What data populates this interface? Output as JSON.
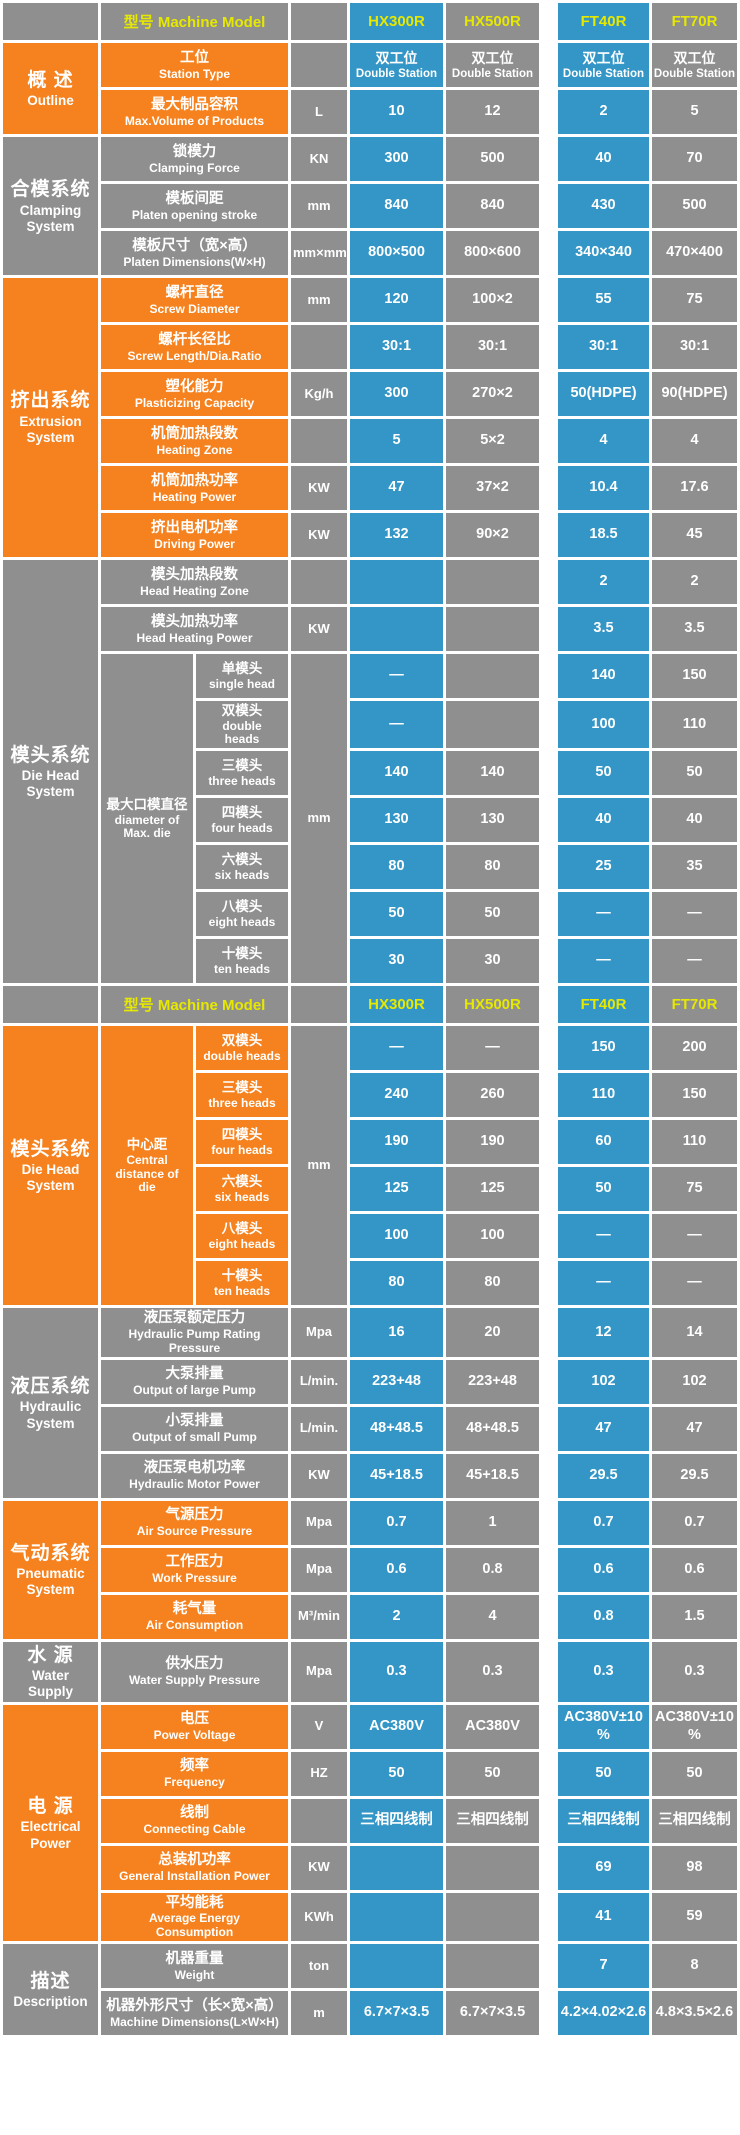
{
  "palette": {
    "orange": "#F5821E",
    "gray": "#8F8F8F",
    "blue": "#3396C6",
    "yellow_text": "#E6E800",
    "value_text": "#FFFFFF",
    "background": "#FFFFFF"
  },
  "header": {
    "model_label": "型号 Machine Model",
    "models": [
      "HX300R",
      "HX500R",
      "FT40R",
      "FT70R"
    ]
  },
  "blocks": [
    {
      "type": "header"
    },
    {
      "type": "section",
      "cn": "概 述",
      "en": "Outline",
      "theme": "orange",
      "rows": [
        {
          "cn": "工位",
          "en": "Station Type",
          "unit": "",
          "values": [
            {
              "cn": "双工位",
              "en": "Double Station"
            },
            {
              "cn": "双工位",
              "en": "Double Station"
            },
            {
              "cn": "双工位",
              "en": "Double Station"
            },
            {
              "cn": "双工位",
              "en": "Double Station"
            }
          ]
        },
        {
          "cn": "最大制品容积",
          "en": "Max.Volume of Products",
          "unit": "L",
          "values": [
            "10",
            "12",
            "2",
            "5"
          ]
        }
      ]
    },
    {
      "type": "section",
      "cn": "合模系统",
      "en": "Clamping\nSystem",
      "theme": "gray",
      "rows": [
        {
          "cn": "锁模力",
          "en": "Clamping Force",
          "unit": "KN",
          "values": [
            "300",
            "500",
            "40",
            "70"
          ]
        },
        {
          "cn": "模板间距",
          "en": "Platen opening stroke",
          "unit": "mm",
          "values": [
            "840",
            "840",
            "430",
            "500"
          ]
        },
        {
          "cn": "模板尺寸（宽×高）",
          "en": "Platen Dimensions(W×H)",
          "unit": "mm×mm",
          "values": [
            "800×500",
            "800×600",
            "340×340",
            "470×400"
          ]
        }
      ]
    },
    {
      "type": "section",
      "cn": "挤出系统",
      "en": "Extrusion\nSystem",
      "theme": "orange",
      "rows": [
        {
          "cn": "螺杆直径",
          "en": "Screw Diameter",
          "unit": "mm",
          "values": [
            "120",
            "100×2",
            "55",
            "75"
          ]
        },
        {
          "cn": "螺杆长径比",
          "en": "Screw Length/Dia.Ratio",
          "unit": "",
          "values": [
            "30:1",
            "30:1",
            "30:1",
            "30:1"
          ]
        },
        {
          "cn": "塑化能力",
          "en": "Plasticizing Capacity",
          "unit": "Kg/h",
          "values": [
            "300",
            "270×2",
            "50(HDPE)",
            "90(HDPE)"
          ]
        },
        {
          "cn": "机筒加热段数",
          "en": "Heating Zone",
          "unit": "",
          "values": [
            "5",
            "5×2",
            "4",
            "4"
          ]
        },
        {
          "cn": "机筒加热功率",
          "en": "Heating Power",
          "unit": "KW",
          "values": [
            "47",
            "37×2",
            "10.4",
            "17.6"
          ]
        },
        {
          "cn": "挤出电机功率",
          "en": "Driving Power",
          "unit": "KW",
          "values": [
            "132",
            "90×2",
            "18.5",
            "45"
          ]
        }
      ]
    },
    {
      "type": "section",
      "cn": "模头系统",
      "en": "Die Head\nSystem",
      "theme": "gray",
      "rows": [
        {
          "cn": "模头加热段数",
          "en": "Head Heating Zone",
          "unit": "",
          "values": [
            "",
            "",
            "2",
            "2"
          ]
        },
        {
          "cn": "模头加热功率",
          "en": "Head Heating Power",
          "unit": "KW",
          "values": [
            "",
            "",
            "3.5",
            "3.5"
          ]
        },
        {
          "group": {
            "cn": "最大口模直径",
            "en": "diameter of\nMax. die"
          },
          "unit": "mm",
          "subrows": [
            {
              "cn": "单模头",
              "en": "single head",
              "values": [
                "—",
                "",
                "140",
                "150"
              ]
            },
            {
              "cn": "双模头",
              "en": "double\nheads",
              "values": [
                "—",
                "",
                "100",
                "110"
              ]
            },
            {
              "cn": "三模头",
              "en": "three heads",
              "values": [
                "140",
                "140",
                "50",
                "50"
              ]
            },
            {
              "cn": "四模头",
              "en": "four heads",
              "values": [
                "130",
                "130",
                "40",
                "40"
              ]
            },
            {
              "cn": "六模头",
              "en": "six heads",
              "values": [
                "80",
                "80",
                "25",
                "35"
              ]
            },
            {
              "cn": "八模头",
              "en": "eight heads",
              "values": [
                "50",
                "50",
                "—",
                "—"
              ]
            },
            {
              "cn": "十模头",
              "en": "ten heads",
              "values": [
                "30",
                "30",
                "—",
                "—"
              ]
            }
          ]
        }
      ]
    },
    {
      "type": "header"
    },
    {
      "type": "section",
      "cn": "模头系统",
      "en": "Die Head\nSystem",
      "theme": "orange",
      "rows": [
        {
          "group": {
            "cn": "中心距",
            "en": "Central\ndistance of\ndie"
          },
          "unit": "mm",
          "subrows": [
            {
              "cn": "双模头",
              "en": "double heads",
              "values": [
                "—",
                "—",
                "150",
                "200"
              ]
            },
            {
              "cn": "三模头",
              "en": "three heads",
              "values": [
                "240",
                "260",
                "110",
                "150"
              ]
            },
            {
              "cn": "四模头",
              "en": "four heads",
              "values": [
                "190",
                "190",
                "60",
                "110"
              ]
            },
            {
              "cn": "六模头",
              "en": "six heads",
              "values": [
                "125",
                "125",
                "50",
                "75"
              ]
            },
            {
              "cn": "八模头",
              "en": "eight heads",
              "values": [
                "100",
                "100",
                "—",
                "—"
              ]
            },
            {
              "cn": "十模头",
              "en": "ten heads",
              "values": [
                "80",
                "80",
                "—",
                "—"
              ]
            }
          ]
        }
      ]
    },
    {
      "type": "section",
      "cn": "液压系统",
      "en": "Hydraulic\nSystem",
      "theme": "gray",
      "rows": [
        {
          "cn": "液压泵额定压力",
          "en": "Hydraulic Pump Rating Pressure",
          "unit": "Mpa",
          "values": [
            "16",
            "20",
            "12",
            "14"
          ]
        },
        {
          "cn": "大泵排量",
          "en": "Output of large Pump",
          "unit": "L/min.",
          "values": [
            "223+48",
            "223+48",
            "102",
            "102"
          ]
        },
        {
          "cn": "小泵排量",
          "en": "Output of small Pump",
          "unit": "L/min.",
          "values": [
            "48+48.5",
            "48+48.5",
            "47",
            "47"
          ]
        },
        {
          "cn": "液压泵电机功率",
          "en": "Hydraulic Motor Power",
          "unit": "KW",
          "values": [
            "45+18.5",
            "45+18.5",
            "29.5",
            "29.5"
          ]
        }
      ]
    },
    {
      "type": "section",
      "cn": "气动系统",
      "en": "Pneumatic\nSystem",
      "theme": "orange",
      "rows": [
        {
          "cn": "气源压力",
          "en": "Air Source Pressure",
          "unit": "Mpa",
          "values": [
            "0.7",
            "1",
            "0.7",
            "0.7"
          ]
        },
        {
          "cn": "工作压力",
          "en": "Work Pressure",
          "unit": "Mpa",
          "values": [
            "0.6",
            "0.8",
            "0.6",
            "0.6"
          ]
        },
        {
          "cn": "耗气量",
          "en": "Air Consumption",
          "unit": "M³/min",
          "values": [
            "2",
            "4",
            "0.8",
            "1.5"
          ]
        }
      ]
    },
    {
      "type": "section",
      "cn": "水 源",
      "en": "Water\nSupply",
      "theme": "gray",
      "rows": [
        {
          "cn": "供水压力",
          "en": "Water Supply Pressure",
          "unit": "Mpa",
          "values": [
            "0.3",
            "0.3",
            "0.3",
            "0.3"
          ]
        }
      ]
    },
    {
      "type": "section",
      "cn": "电 源",
      "en": "Electrical\nPower",
      "theme": "orange",
      "rows": [
        {
          "cn": "电压",
          "en": "Power Voltage",
          "unit": "V",
          "values": [
            "AC380V",
            "AC380V",
            "AC380V±10%",
            "AC380V±10%"
          ]
        },
        {
          "cn": "频率",
          "en": "Frequency",
          "unit": "HZ",
          "values": [
            "50",
            "50",
            "50",
            "50"
          ]
        },
        {
          "cn": "线制",
          "en": "Connecting Cable",
          "unit": "",
          "values": [
            "三相四线制",
            "三相四线制",
            "三相四线制",
            "三相四线制"
          ]
        },
        {
          "cn": "总装机功率",
          "en": "General Installation Power",
          "unit": "KW",
          "values": [
            "",
            "",
            "69",
            "98"
          ]
        },
        {
          "cn": "平均能耗",
          "en": "Average Energy\nConsumption",
          "unit": "KWh",
          "values": [
            "",
            "",
            "41",
            "59"
          ]
        }
      ]
    },
    {
      "type": "section",
      "cn": "描述",
      "en": "Description",
      "theme": "gray",
      "rows": [
        {
          "cn": "机器重量",
          "en": "Weight",
          "unit": "ton",
          "values": [
            "",
            "",
            "7",
            "8"
          ]
        },
        {
          "cn": "机器外形尺寸（长×宽×高）",
          "en": "Machine Dimensions(L×W×H)",
          "unit": "m",
          "values": [
            "6.7×7×3.5",
            "6.7×7×3.5",
            "4.2×4.02×2.6",
            "4.8×3.5×2.6"
          ]
        }
      ]
    }
  ]
}
